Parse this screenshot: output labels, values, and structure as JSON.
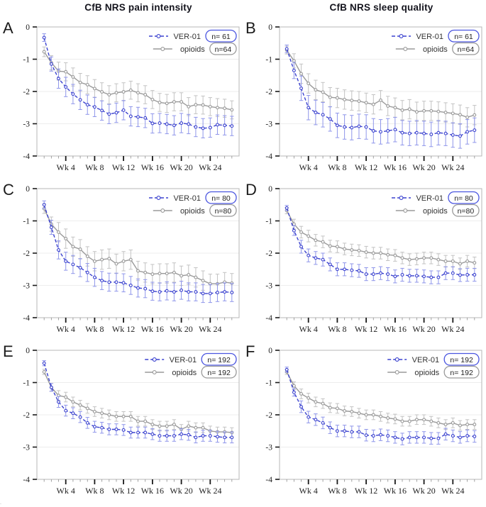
{
  "figure": {
    "column_titles": [
      "CfB NRS pain intensity",
      "CfB NRS sleep quality"
    ]
  },
  "colors": {
    "ver01": "#3b42cf",
    "ver01_err": "#8f96ea",
    "ver01_box": "#4a55e0",
    "opioids": "#9a9a9a",
    "opioids_err": "#c3c3c3",
    "opioids_box": "#9a9a9a",
    "plot_border": "#b7b7b7",
    "gridline": "#ededed",
    "tick_major": "#1a1a1a",
    "tick_minor": "#999999",
    "tick_label": "#222222",
    "legend_text": "#333333",
    "title_text": "#14141d"
  },
  "axis": {
    "ylim": [
      -4,
      0
    ],
    "ytick_values": [
      0,
      -1,
      -2,
      -3,
      -4
    ],
    "ytick_labels": [
      "0",
      "-1",
      "-2",
      "-3",
      "-4"
    ],
    "gridline_values": [
      -1,
      -2,
      -3
    ],
    "weeks": [
      1,
      2,
      3,
      4,
      5,
      6,
      7,
      8,
      9,
      10,
      11,
      12,
      13,
      14,
      15,
      16,
      17,
      18,
      19,
      20,
      21,
      22,
      23,
      24,
      25,
      26,
      27
    ],
    "xticks": [
      {
        "week": 4,
        "label": "Wk 4"
      },
      {
        "week": 8,
        "label": "Wk 8"
      },
      {
        "week": 12,
        "label": "Wk 12"
      },
      {
        "week": 16,
        "label": "Wk 16"
      },
      {
        "week": 20,
        "label": "Wk 20"
      },
      {
        "week": 24,
        "label": "Wk 24"
      }
    ]
  },
  "chart_data": [
    {
      "type": "line",
      "panel": "A",
      "title": "CfB NRS pain intensity",
      "series": [
        {
          "name": "VER-01",
          "n_label": "n= 61",
          "color_key": "ver01",
          "style": "dashed",
          "values": [
            -0.33,
            -1.15,
            -1.6,
            -1.86,
            -2.08,
            -2.26,
            -2.41,
            -2.48,
            -2.59,
            -2.7,
            -2.66,
            -2.58,
            -2.77,
            -2.79,
            -2.82,
            -2.99,
            -2.98,
            -3.01,
            -3.05,
            -2.98,
            -3.01,
            -3.1,
            -3.14,
            -3.12,
            -3.03,
            -3.05,
            -3.07
          ],
          "err": {
            "wk1": 0.12,
            "wk2": 0.22,
            "rest": 0.3
          }
        },
        {
          "name": "opioids",
          "n_label": "n=64",
          "color_key": "opioids",
          "style": "solid",
          "values": [
            -0.77,
            -1.11,
            -1.37,
            -1.39,
            -1.55,
            -1.72,
            -1.79,
            -1.91,
            -2.01,
            -2.1,
            -2.04,
            -2.01,
            -1.96,
            -2.04,
            -2.1,
            -2.25,
            -2.34,
            -2.37,
            -2.32,
            -2.32,
            -2.47,
            -2.41,
            -2.42,
            -2.47,
            -2.5,
            -2.52,
            -2.57
          ],
          "err": {
            "wk1": 0.15,
            "wk2": 0.22,
            "rest": 0.28
          }
        }
      ]
    },
    {
      "type": "line",
      "panel": "B",
      "title": "CfB NRS sleep quality",
      "series": [
        {
          "name": "VER-01",
          "n_label": "n= 61",
          "color_key": "ver01",
          "style": "dashed",
          "values": [
            -0.68,
            -1.35,
            -1.9,
            -2.5,
            -2.65,
            -2.72,
            -2.85,
            -3.05,
            -3.1,
            -3.12,
            -3.08,
            -3.1,
            -3.22,
            -3.25,
            -3.22,
            -3.18,
            -3.28,
            -3.3,
            -3.28,
            -3.3,
            -3.33,
            -3.28,
            -3.3,
            -3.35,
            -3.38,
            -3.25,
            -3.2
          ],
          "err": {
            "wk1": 0.12,
            "wk2": 0.25,
            "rest": 0.38
          }
        },
        {
          "name": "opioids",
          "n_label": "n=64",
          "color_key": "opioids",
          "style": "solid",
          "values": [
            -0.72,
            -1.05,
            -1.45,
            -1.75,
            -1.95,
            -2.02,
            -2.18,
            -2.2,
            -2.25,
            -2.28,
            -2.3,
            -2.35,
            -2.4,
            -2.27,
            -2.45,
            -2.5,
            -2.58,
            -2.55,
            -2.63,
            -2.6,
            -2.6,
            -2.62,
            -2.65,
            -2.68,
            -2.72,
            -2.8,
            -2.73
          ],
          "err": {
            "wk1": 0.12,
            "wk2": 0.22,
            "rest": 0.3
          }
        }
      ]
    },
    {
      "type": "line",
      "panel": "C",
      "title": "CfB NRS pain intensity",
      "series": [
        {
          "name": "VER-01",
          "n_label": "n= 80",
          "color_key": "ver01",
          "style": "dashed",
          "values": [
            -0.5,
            -1.2,
            -1.9,
            -2.25,
            -2.35,
            -2.45,
            -2.6,
            -2.75,
            -2.85,
            -2.9,
            -2.9,
            -2.92,
            -3.0,
            -3.08,
            -3.1,
            -3.18,
            -3.2,
            -3.17,
            -3.2,
            -3.15,
            -3.2,
            -3.2,
            -3.25,
            -3.25,
            -3.22,
            -3.2,
            -3.22
          ],
          "err": {
            "wk1": 0.12,
            "wk2": 0.22,
            "rest": 0.28
          }
        },
        {
          "name": "opioids",
          "n_label": "n=80",
          "color_key": "opioids",
          "style": "solid",
          "values": [
            -0.62,
            -1.1,
            -1.35,
            -1.55,
            -1.8,
            -1.88,
            -2.1,
            -2.25,
            -2.2,
            -2.17,
            -2.33,
            -2.25,
            -2.2,
            -2.55,
            -2.6,
            -2.65,
            -2.63,
            -2.63,
            -2.6,
            -2.7,
            -2.67,
            -2.75,
            -2.85,
            -2.95,
            -2.95,
            -2.9,
            -2.93
          ],
          "err": {
            "wk1": 0.15,
            "wk2": 0.22,
            "rest": 0.3
          }
        }
      ]
    },
    {
      "type": "line",
      "panel": "D",
      "title": "CfB NRS sleep quality",
      "series": [
        {
          "name": "VER-01",
          "n_label": "n= 80",
          "color_key": "ver01",
          "style": "dashed",
          "values": [
            -0.6,
            -1.3,
            -1.8,
            -2.07,
            -2.15,
            -2.2,
            -2.35,
            -2.5,
            -2.5,
            -2.53,
            -2.55,
            -2.65,
            -2.65,
            -2.62,
            -2.65,
            -2.72,
            -2.67,
            -2.7,
            -2.7,
            -2.72,
            -2.75,
            -2.75,
            -2.62,
            -2.62,
            -2.68,
            -2.67,
            -2.67
          ],
          "err": {
            "wk1": 0.08,
            "wk2": 0.15,
            "rest": 0.2
          }
        },
        {
          "name": "opioids",
          "n_label": "n=80",
          "color_key": "opioids",
          "style": "solid",
          "values": [
            -0.68,
            -1.1,
            -1.35,
            -1.47,
            -1.6,
            -1.65,
            -1.78,
            -1.8,
            -1.87,
            -1.9,
            -1.92,
            -1.97,
            -2.0,
            -2.0,
            -2.05,
            -2.07,
            -2.15,
            -2.2,
            -2.18,
            -2.15,
            -2.15,
            -2.2,
            -2.25,
            -2.25,
            -2.33,
            -2.25,
            -2.3
          ],
          "err": {
            "wk1": 0.1,
            "wk2": 0.15,
            "rest": 0.18
          }
        }
      ]
    },
    {
      "type": "line",
      "panel": "E",
      "title": "CfB NRS pain intensity",
      "series": [
        {
          "name": "VER-01",
          "n_label": "n= 192",
          "color_key": "ver01",
          "style": "dashed",
          "values": [
            -0.4,
            -1.15,
            -1.6,
            -1.87,
            -1.95,
            -2.07,
            -2.25,
            -2.37,
            -2.4,
            -2.45,
            -2.45,
            -2.47,
            -2.55,
            -2.55,
            -2.55,
            -2.6,
            -2.65,
            -2.65,
            -2.65,
            -2.6,
            -2.62,
            -2.7,
            -2.65,
            -2.65,
            -2.68,
            -2.7,
            -2.7
          ],
          "err": {
            "wk1": 0.08,
            "wk2": 0.12,
            "rest": 0.17
          }
        },
        {
          "name": "opioids",
          "n_label": "n= 192",
          "color_key": "opioids",
          "style": "solid",
          "values": [
            -0.67,
            -1.15,
            -1.4,
            -1.45,
            -1.6,
            -1.7,
            -1.8,
            -1.9,
            -1.95,
            -2.0,
            -2.05,
            -2.05,
            -2.05,
            -2.2,
            -2.2,
            -2.3,
            -2.35,
            -2.35,
            -2.3,
            -2.45,
            -2.35,
            -2.4,
            -2.4,
            -2.5,
            -2.53,
            -2.53,
            -2.55
          ],
          "err": {
            "wk1": 0.08,
            "wk2": 0.12,
            "rest": 0.15
          }
        }
      ]
    },
    {
      "type": "line",
      "panel": "F",
      "title": "CfB NRS sleep quality",
      "series": [
        {
          "name": "VER-01",
          "n_label": "n= 192",
          "color_key": "ver01",
          "style": "dashed",
          "values": [
            -0.6,
            -1.3,
            -1.75,
            -2.07,
            -2.15,
            -2.25,
            -2.4,
            -2.5,
            -2.5,
            -2.53,
            -2.53,
            -2.63,
            -2.65,
            -2.62,
            -2.65,
            -2.7,
            -2.75,
            -2.7,
            -2.7,
            -2.7,
            -2.73,
            -2.73,
            -2.6,
            -2.65,
            -2.7,
            -2.65,
            -2.67
          ],
          "err": {
            "wk1": 0.08,
            "wk2": 0.12,
            "rest": 0.18
          }
        },
        {
          "name": "opioids",
          "n_label": "n= 192",
          "color_key": "opioids",
          "style": "solid",
          "values": [
            -0.67,
            -1.1,
            -1.35,
            -1.48,
            -1.6,
            -1.65,
            -1.78,
            -1.8,
            -1.88,
            -1.9,
            -1.95,
            -2.0,
            -2.0,
            -2.05,
            -2.1,
            -2.13,
            -2.2,
            -2.2,
            -2.15,
            -2.15,
            -2.2,
            -2.25,
            -2.3,
            -2.25,
            -2.33,
            -2.3,
            -2.3
          ],
          "err": {
            "wk1": 0.08,
            "wk2": 0.12,
            "rest": 0.15
          }
        }
      ]
    }
  ]
}
